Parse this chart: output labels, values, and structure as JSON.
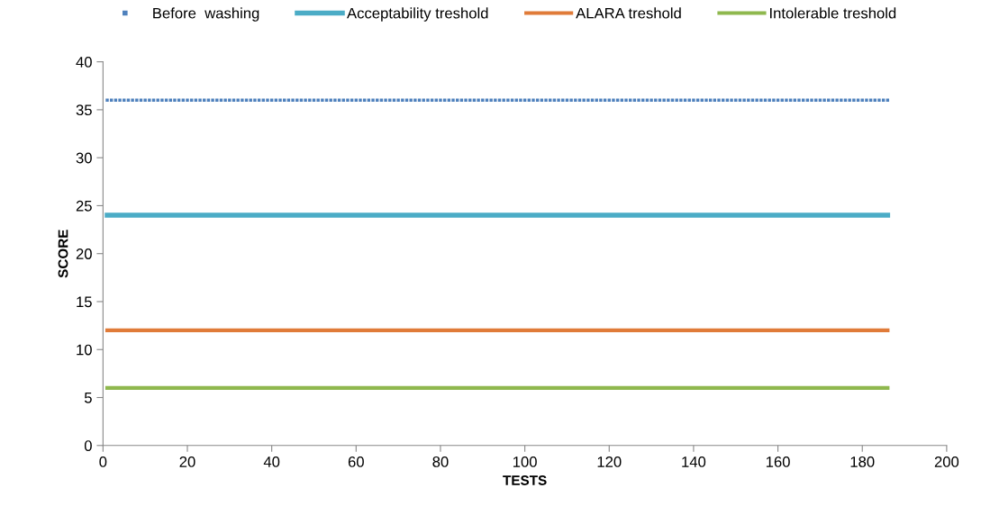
{
  "chart_data": {
    "type": "line",
    "xlabel": "TESTS",
    "ylabel": "SCORE",
    "xlim": [
      0,
      200
    ],
    "xticks": [
      0,
      20,
      40,
      60,
      80,
      100,
      120,
      140,
      160,
      180,
      200
    ],
    "ylim": [
      0,
      40
    ],
    "yticks": [
      0,
      5,
      10,
      15,
      20,
      25,
      30,
      35,
      40
    ],
    "grid": false,
    "legend": "top",
    "series": [
      {
        "name": "Before  washing",
        "type": "scatter",
        "marker": "square",
        "color": "#4f81bd",
        "x": [
          1,
          2,
          3,
          4,
          5,
          6,
          7,
          8,
          9,
          10,
          11,
          12,
          13,
          14,
          15,
          16,
          17,
          18,
          19,
          20,
          21,
          22,
          23,
          24,
          25,
          26,
          27,
          28,
          29,
          30,
          31,
          32,
          33,
          34,
          35,
          36,
          37,
          38,
          39,
          40,
          41,
          42,
          43,
          44,
          45,
          46,
          47,
          48,
          49,
          50,
          51,
          52,
          53,
          54,
          55,
          56,
          57,
          58,
          59,
          60,
          61,
          62,
          63,
          64,
          65,
          66,
          67,
          68,
          69,
          70,
          71,
          72,
          73,
          74,
          75,
          76,
          77,
          78,
          79,
          80,
          81,
          82,
          83,
          84,
          85,
          86,
          87,
          88,
          89,
          90,
          91,
          92,
          93,
          94,
          95,
          96,
          97,
          98,
          99,
          100,
          101,
          102,
          103,
          104,
          105,
          106,
          107,
          108,
          109,
          110,
          111,
          112,
          113,
          114,
          115,
          116,
          117,
          118,
          119,
          120,
          121,
          122,
          123,
          124,
          125,
          126,
          127,
          128,
          129,
          130,
          131,
          132,
          133,
          134,
          135,
          136,
          137,
          138,
          139,
          140,
          141,
          142,
          143,
          144,
          145,
          146,
          147,
          148,
          149,
          150,
          151,
          152,
          153,
          154,
          155,
          156,
          157,
          158,
          159,
          160,
          161,
          162,
          163,
          164,
          165,
          166,
          167,
          168,
          169,
          170,
          171,
          172,
          173,
          174,
          175,
          176,
          177,
          178,
          179,
          180,
          181,
          182,
          183,
          184,
          185,
          186
        ],
        "values": [
          36,
          36,
          36,
          36,
          36,
          36,
          36,
          36,
          36,
          36,
          36,
          36,
          36,
          36,
          36,
          36,
          36,
          36,
          36,
          36,
          36,
          36,
          36,
          36,
          36,
          36,
          36,
          36,
          36,
          36,
          36,
          36,
          36,
          36,
          36,
          36,
          36,
          36,
          36,
          36,
          36,
          36,
          36,
          36,
          36,
          36,
          36,
          36,
          36,
          36,
          36,
          36,
          36,
          36,
          36,
          36,
          36,
          36,
          36,
          36,
          36,
          36,
          36,
          36,
          36,
          36,
          36,
          36,
          36,
          36,
          36,
          36,
          36,
          36,
          36,
          36,
          36,
          36,
          36,
          36,
          36,
          36,
          36,
          36,
          36,
          36,
          36,
          36,
          36,
          36,
          36,
          36,
          36,
          36,
          36,
          36,
          36,
          36,
          36,
          36,
          36,
          36,
          36,
          36,
          36,
          36,
          36,
          36,
          36,
          36,
          36,
          36,
          36,
          36,
          36,
          36,
          36,
          36,
          36,
          36,
          36,
          36,
          36,
          36,
          36,
          36,
          36,
          36,
          36,
          36,
          36,
          36,
          36,
          36,
          36,
          36,
          36,
          36,
          36,
          36,
          36,
          36,
          36,
          36,
          36,
          36,
          36,
          36,
          36,
          36,
          36,
          36,
          36,
          36,
          36,
          36,
          36,
          36,
          36,
          36,
          36,
          36,
          36,
          36,
          36,
          36,
          36,
          36,
          36,
          36,
          36,
          36,
          36,
          36,
          36,
          36,
          36,
          36,
          36,
          36,
          36,
          36,
          36,
          36,
          36,
          36
        ]
      },
      {
        "name": "Acceptability treshold",
        "marker": "none",
        "line_style": "solid",
        "color": "#4bacc6",
        "x": [
          1,
          186
        ],
        "values": [
          24,
          24
        ]
      },
      {
        "name": "ALARA treshold",
        "marker": "none",
        "line_style": "solid",
        "color": "#e07b39",
        "x": [
          1,
          186
        ],
        "values": [
          12,
          12
        ]
      },
      {
        "name": "Intolerable treshold",
        "marker": "none",
        "line_style": "solid",
        "color": "#8fb84e",
        "x": [
          1,
          186
        ],
        "values": [
          6,
          6
        ]
      }
    ]
  }
}
